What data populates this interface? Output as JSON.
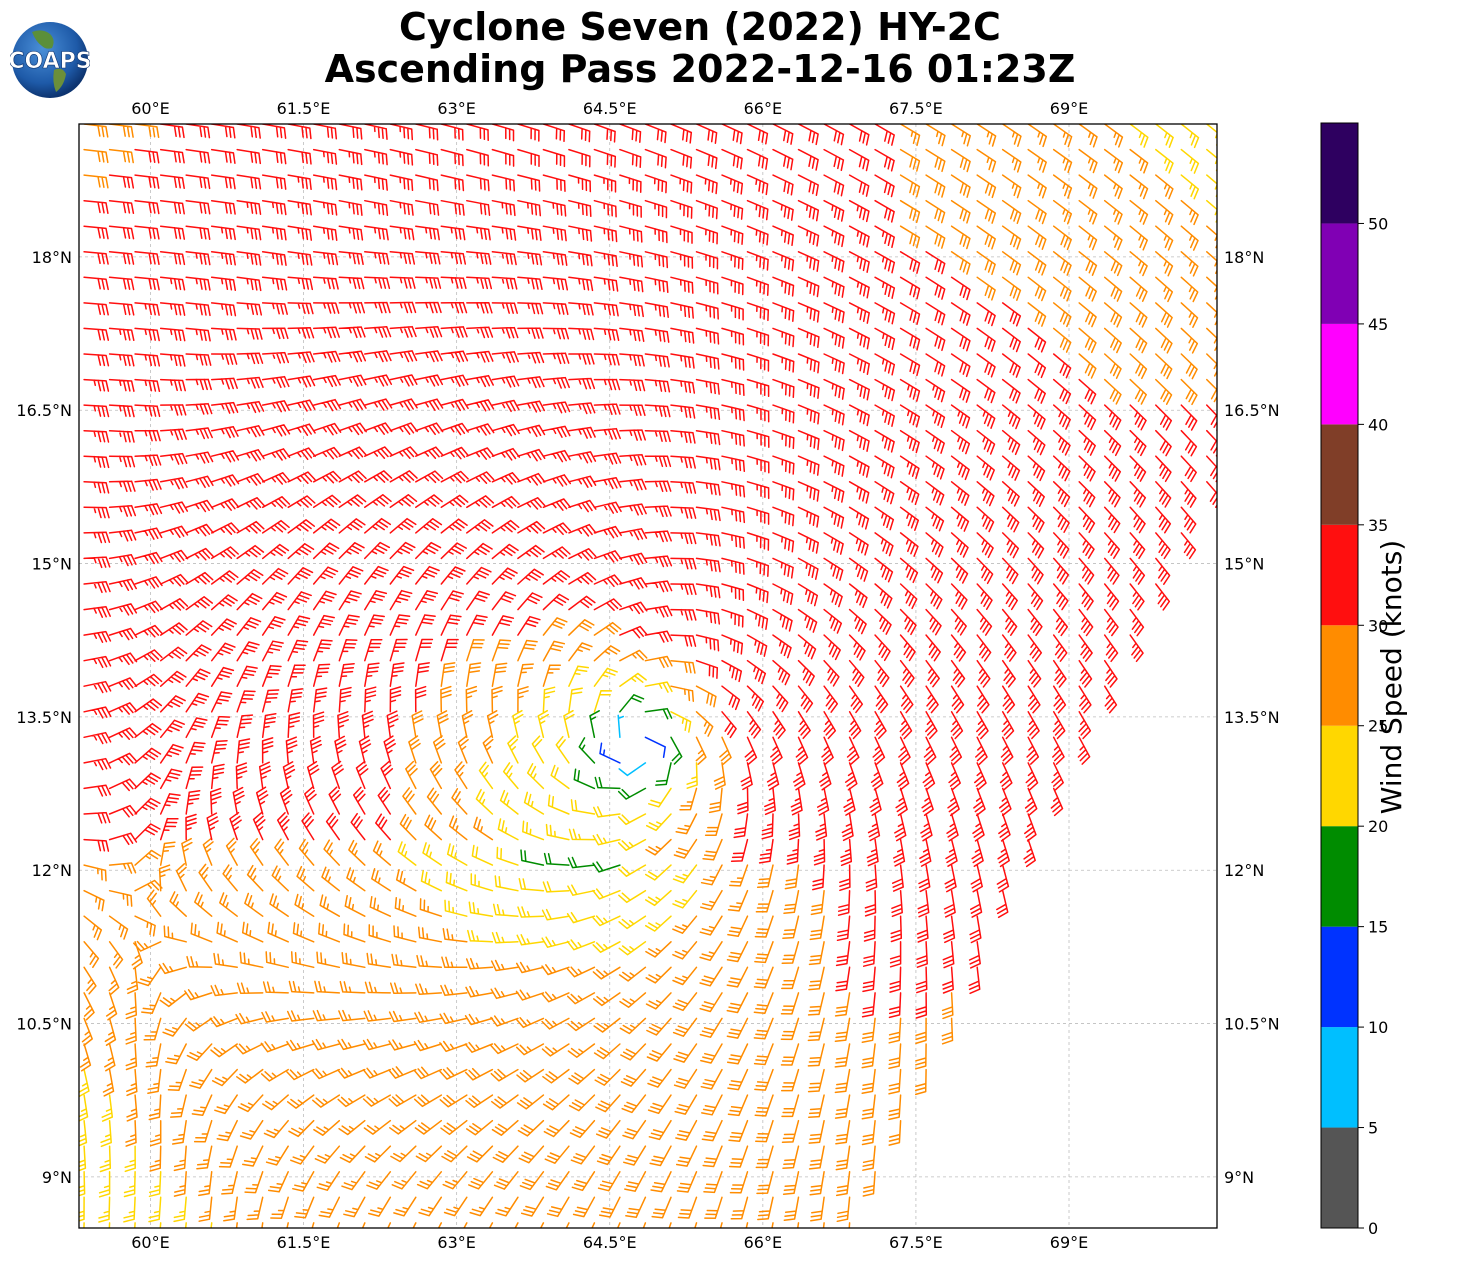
{
  "title": {
    "line1": "Cyclone Seven (2022) HY-2C",
    "line2": "Ascending Pass 2022-12-16 01:23Z"
  },
  "logo": {
    "text": "COAPS"
  },
  "map": {
    "lon_range": [
      59.3,
      70.45
    ],
    "lat_range": [
      8.5,
      19.3
    ],
    "lon_ticks": [
      {
        "value": 60,
        "label": "60°E"
      },
      {
        "value": 61.5,
        "label": "61.5°E"
      },
      {
        "value": 63,
        "label": "63°E"
      },
      {
        "value": 64.5,
        "label": "64.5°E"
      },
      {
        "value": 66,
        "label": "66°E"
      },
      {
        "value": 67.5,
        "label": "67.5°E"
      },
      {
        "value": 69,
        "label": "69°E"
      }
    ],
    "lat_ticks": [
      {
        "value": 9,
        "label": "9°N"
      },
      {
        "value": 10.5,
        "label": "10.5°N"
      },
      {
        "value": 12,
        "label": "12°N"
      },
      {
        "value": 13.5,
        "label": "13.5°N"
      },
      {
        "value": 15,
        "label": "15°N"
      },
      {
        "value": 16.5,
        "label": "16.5°N"
      },
      {
        "value": 18,
        "label": "18°N"
      }
    ],
    "gridlines": true,
    "swath_edge": [
      [
        66.9,
        8.5
      ],
      [
        70.45,
        16.0
      ]
    ],
    "cyclone_center": {
      "lon": 64.8,
      "lat": 13.25
    }
  },
  "colorbar": {
    "label": "Wind Speed (knots)",
    "ticks": [
      0,
      5,
      10,
      15,
      20,
      25,
      30,
      35,
      40,
      45,
      50
    ],
    "bins": [
      {
        "min": 0,
        "max": 5,
        "color": "#555555"
      },
      {
        "min": 5,
        "max": 10,
        "color": "#00bfff"
      },
      {
        "min": 10,
        "max": 15,
        "color": "#0033ff"
      },
      {
        "min": 15,
        "max": 20,
        "color": "#008c00"
      },
      {
        "min": 20,
        "max": 25,
        "color": "#ffd700"
      },
      {
        "min": 25,
        "max": 30,
        "color": "#ff8c00"
      },
      {
        "min": 30,
        "max": 35,
        "color": "#ff0f0f"
      },
      {
        "min": 35,
        "max": 40,
        "color": "#803e28"
      },
      {
        "min": 40,
        "max": 45,
        "color": "#ff00ff"
      },
      {
        "min": 45,
        "max": 50,
        "color": "#8000b4"
      },
      {
        "min": 50,
        "max": 55,
        "color": "#2e0060"
      }
    ]
  }
}
